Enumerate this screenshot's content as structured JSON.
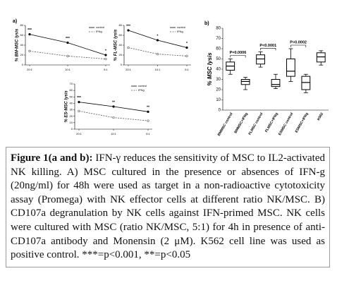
{
  "panel_labels": [
    "a)",
    "b)"
  ],
  "chart_data": [
    {
      "type": "line",
      "ylabel": "% BM-MSC lysis",
      "categories": [
        "20:1",
        "10:1",
        "5:1"
      ],
      "ylim": [
        0,
        80
      ],
      "yticks": [
        0,
        20,
        40,
        60,
        80
      ],
      "legend": "upper right",
      "series": [
        {
          "name": "control",
          "color": "#000000",
          "values": [
            62,
            45,
            20
          ]
        },
        {
          "name": "IFNg",
          "color": "#555555",
          "values": [
            28,
            18,
            12
          ]
        }
      ],
      "annotations": [
        "***",
        "***",
        "*"
      ]
    },
    {
      "type": "line",
      "ylabel": "% FL-MSC lysis",
      "categories": [
        "20:1",
        "10:1",
        "5:1"
      ],
      "ylim": [
        0,
        80
      ],
      "yticks": [
        0,
        20,
        40,
        60,
        80
      ],
      "legend": "upper right",
      "series": [
        {
          "name": "control",
          "color": "#000000",
          "values": [
            70,
            50,
            35
          ]
        },
        {
          "name": "IFNg",
          "color": "#555555",
          "values": [
            35,
            22,
            18
          ]
        }
      ],
      "annotations": [
        "***",
        "*",
        "*"
      ]
    },
    {
      "type": "line",
      "ylabel": "% ES-MSC lysis",
      "categories": [
        "20:1",
        "10:1",
        "5:1"
      ],
      "ylim": [
        0,
        70
      ],
      "yticks": [
        0,
        10,
        20,
        30,
        40,
        50,
        60,
        70
      ],
      "legend": "upper right",
      "series": [
        {
          "name": "control",
          "color": "#000000",
          "values": [
            42,
            35,
            27
          ]
        },
        {
          "name": "IFNg",
          "color": "#555555",
          "values": [
            28,
            18,
            13
          ]
        }
      ],
      "annotations": [
        "***",
        "**",
        "**"
      ]
    },
    {
      "type": "box",
      "ylabel": "% MSC lysis",
      "categories": [
        "BMMSC control",
        "BMMSC+IFNg",
        "FLMSC control",
        "FLMSC+IFNg",
        "ESMSC control",
        "ESMSC+IFNg",
        "K562"
      ],
      "ylim": [
        0,
        80
      ],
      "yticks": [
        0,
        10,
        20,
        30,
        40,
        50,
        60,
        70,
        80
      ],
      "boxes": [
        {
          "min": 35,
          "q1": 39,
          "median": 43,
          "q3": 47,
          "max": 50
        },
        {
          "min": 20,
          "q1": 25,
          "median": 28,
          "q3": 30,
          "max": 32
        },
        {
          "min": 42,
          "q1": 45,
          "median": 50,
          "q3": 54,
          "max": 57
        },
        {
          "min": 21,
          "q1": 23,
          "median": 25,
          "q3": 30,
          "max": 35
        },
        {
          "min": 28,
          "q1": 33,
          "median": 38,
          "q3": 50,
          "max": 60
        },
        {
          "min": 17,
          "q1": 20,
          "median": 27,
          "q3": 33,
          "max": 35
        },
        {
          "min": 44,
          "q1": 47,
          "median": 52,
          "q3": 56,
          "max": 58
        }
      ],
      "annotations": [
        "P=0.0006",
        "P<0.0001",
        "P=0.0002"
      ]
    }
  ],
  "caption": {
    "label": "Figure 1(a and b):",
    "text": "IFN-γ reduces the sensitivity of MSC to IL2-activated NK killing. A) MSC cultured in the presence or absences of IFN-g (20ng/ml) for 48h were used as target in a non-radioactive cytotoxicity assay (Promega) with NK effector cells at different ratio NK/MSC. B) CD107a degranulation by NK cells against IFN-primed MSC. NK cells were cultured with MSC (ratio NK/MSC, 5:1) for 4h in presence of anti-CD107a antibody and Monensin (2 μM). K562 cell line was used as positive control. ***=p<0.001, **=p<0.05"
  }
}
